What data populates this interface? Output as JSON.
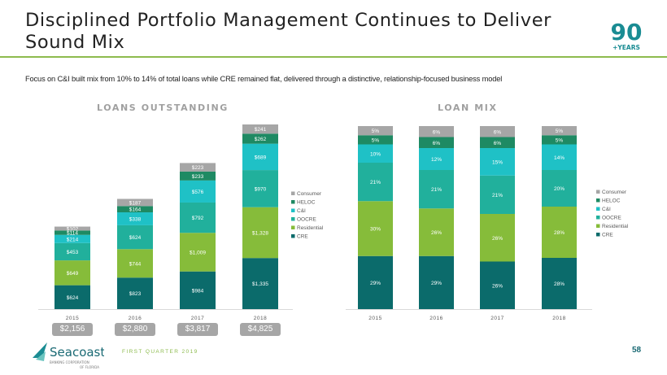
{
  "header": {
    "title": "Disciplined Portfolio Management Continues to Deliver Sound Mix",
    "badge_number": "90",
    "badge_label": "+YEARS"
  },
  "subtitle": "Focus on C&I built mix from 10% to 14% of total loans while CRE remained flat, delivered through a distinctive, relationship-focused business model",
  "colors": {
    "CRE": "#0b6b6b",
    "Residential": "#86bc3a",
    "OOCRE": "#21b09c",
    "C&I": "#1fc1c6",
    "HELOC": "#1e8a63",
    "Consumer": "#a6a6a6",
    "accent_green": "#8dbb4e",
    "brand_teal": "#1a8c93"
  },
  "chart_data": [
    {
      "type": "bar",
      "stacked": true,
      "title": "LOANS OUTSTANDING",
      "categories": [
        "2015",
        "2016",
        "2017",
        "2018"
      ],
      "series": [
        {
          "name": "CRE",
          "values": [
            624,
            823,
            984,
            1335
          ],
          "labels": [
            "$624",
            "$823",
            "$984",
            "$1,335"
          ]
        },
        {
          "name": "Residential",
          "values": [
            649,
            744,
            1009,
            1328
          ],
          "labels": [
            "$649",
            "$744",
            "$1,009",
            "$1,328"
          ]
        },
        {
          "name": "OOCRE",
          "values": [
            453,
            624,
            792,
            970
          ],
          "labels": [
            "$453",
            "$624",
            "$792",
            "$970"
          ]
        },
        {
          "name": "C&I",
          "values": [
            214,
            338,
            576,
            689
          ],
          "labels": [
            "$214",
            "$338",
            "$576",
            "$689"
          ]
        },
        {
          "name": "HELOC",
          "values": [
            114,
            164,
            233,
            262
          ],
          "labels": [
            "$114",
            "$164",
            "$233",
            "$262"
          ]
        },
        {
          "name": "Consumer",
          "values": [
            102,
            187,
            223,
            241
          ],
          "labels": [
            "$102",
            "$187",
            "$223",
            "$241"
          ]
        }
      ],
      "totals": [
        "$2,156",
        "$2,880",
        "$3,817",
        "$4,825"
      ],
      "legend": [
        "Consumer",
        "HELOC",
        "C&I",
        "OOCRE",
        "Residential",
        "CRE"
      ],
      "legend_position": "right",
      "xlabel": "",
      "ylabel": "",
      "grid": false
    },
    {
      "type": "bar",
      "stacked": true,
      "percent": true,
      "title": "LOAN MIX",
      "categories": [
        "2015",
        "2016",
        "2017",
        "2018"
      ],
      "series": [
        {
          "name": "CRE",
          "values": [
            29,
            29,
            26,
            28
          ]
        },
        {
          "name": "Residential",
          "values": [
            30,
            26,
            26,
            28
          ]
        },
        {
          "name": "OOCRE",
          "values": [
            21,
            21,
            21,
            20
          ]
        },
        {
          "name": "C&I",
          "values": [
            10,
            12,
            15,
            14
          ]
        },
        {
          "name": "HELOC",
          "values": [
            5,
            6,
            6,
            5
          ]
        },
        {
          "name": "Consumer",
          "values": [
            5,
            6,
            6,
            5
          ]
        }
      ],
      "legend": [
        "Consumer",
        "HELOC",
        "C&I",
        "OOCRE",
        "Residential",
        "CRE"
      ],
      "legend_position": "right",
      "xlabel": "",
      "ylabel": "",
      "grid": false
    }
  ],
  "footer": {
    "logo_name": "Seacoast",
    "logo_sub1": "BANKING CORPORATION",
    "logo_sub2": "OF FLORIDA",
    "period": "FIRST QUARTER 2019",
    "page_number": "58"
  }
}
